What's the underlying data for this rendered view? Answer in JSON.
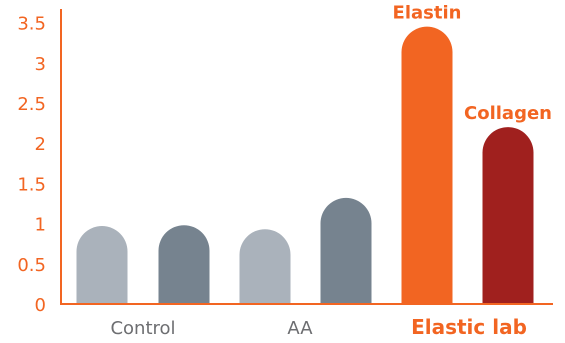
{
  "chart_data": {
    "type": "bar",
    "categories": [
      "Control",
      "AA",
      "Elastic lab"
    ],
    "series": [
      {
        "name": "Elastin",
        "values": [
          0.97,
          0.93,
          3.45
        ]
      },
      {
        "name": "Collagen",
        "values": [
          0.98,
          1.32,
          2.2
        ]
      }
    ],
    "bar_labels": [
      {
        "category_index": 2,
        "series_index": 0,
        "text": "Elastin"
      },
      {
        "category_index": 2,
        "series_index": 1,
        "text": "Collagen"
      }
    ],
    "highlight_category_index": 2,
    "yticks": [
      "0",
      "0.5",
      "1",
      "1.5",
      "2",
      "2.5",
      "3",
      "3.5"
    ],
    "ylim": [
      0,
      3.6
    ],
    "grid": false,
    "legend": "none",
    "title": "",
    "xlabel": "",
    "ylabel": ""
  },
  "colors": {
    "axis": "#f26522",
    "tick_text": "#f26522",
    "category_text": "#6d6e71",
    "highlight_text": "#f26522",
    "elastin_grey": "#aab2bb",
    "collagen_grey": "#76838f",
    "elastin_highlight": "#f26522",
    "collagen_highlight": "#a0201e"
  }
}
